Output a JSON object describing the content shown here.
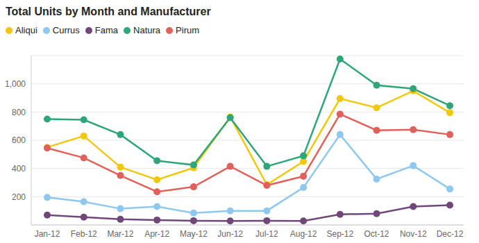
{
  "chart_data": {
    "type": "line",
    "title": "Total Units by Month and Manufacturer",
    "categories": [
      "Jan-12",
      "Feb-12",
      "Mar-12",
      "Apr-12",
      "May-12",
      "Jun-12",
      "Jul-12",
      "Aug-12",
      "Sep-12",
      "Oct-12",
      "Nov-12",
      "Dec-12"
    ],
    "series": [
      {
        "name": "Aliqui",
        "color": "#F2C80F",
        "values": [
          550,
          630,
          410,
          320,
          405,
          765,
          285,
          450,
          895,
          830,
          950,
          795
        ]
      },
      {
        "name": "Currus",
        "color": "#8FC8EE",
        "values": [
          195,
          165,
          115,
          130,
          85,
          100,
          100,
          265,
          640,
          325,
          420,
          255
        ]
      },
      {
        "name": "Fama",
        "color": "#6F4879",
        "values": [
          70,
          55,
          40,
          35,
          30,
          28,
          30,
          28,
          75,
          80,
          130,
          140
        ]
      },
      {
        "name": "Natura",
        "color": "#2FA57A",
        "values": [
          750,
          745,
          640,
          455,
          425,
          760,
          415,
          490,
          1175,
          990,
          965,
          845
        ]
      },
      {
        "name": "Pirum",
        "color": "#E0615B",
        "values": [
          545,
          475,
          350,
          235,
          270,
          415,
          280,
          345,
          785,
          670,
          675,
          640
        ]
      }
    ],
    "ylim": [
      0,
      1200
    ],
    "yticks": [
      200,
      400,
      600,
      800,
      {
        "value": 1000,
        "label": "1,000"
      }
    ],
    "grid": true,
    "legend": "top-left",
    "marker": "circle"
  }
}
